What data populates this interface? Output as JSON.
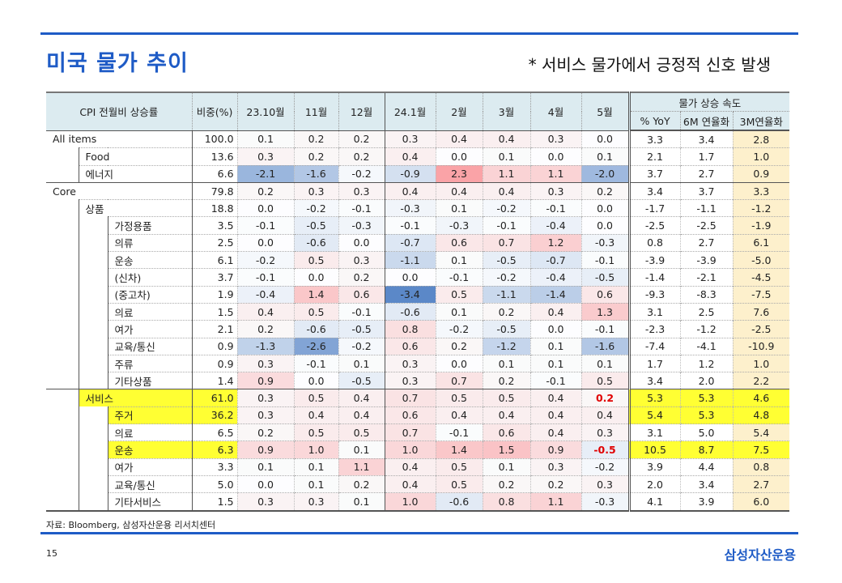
{
  "title": "미국 물가 추이",
  "subtitle": "* 서비스 물가에서 긍정적 신호 발생",
  "header": {
    "label": "CPI 전월비 상승률",
    "weight": "비중(%)",
    "months": [
      "23.10월",
      "11월",
      "12월",
      "24.1월",
      "2월",
      "3월",
      "4월",
      "5월"
    ],
    "speed": "물가 상승 속도",
    "speed_cols": [
      "% YoY",
      "6M 연율화",
      "3M연율화"
    ]
  },
  "rows": [
    {
      "name": "All items",
      "level": 0,
      "w": "100.0",
      "m": [
        "0.1",
        "0.2",
        "0.2",
        "0.3",
        "0.4",
        "0.4",
        "0.3",
        "0.0"
      ],
      "s": [
        "3.3",
        "3.4",
        "2.8"
      ]
    },
    {
      "name": "Food",
      "level": 1,
      "w": "13.6",
      "m": [
        "0.3",
        "0.2",
        "0.2",
        "0.4",
        "0.0",
        "0.1",
        "0.0",
        "0.1"
      ],
      "s": [
        "2.1",
        "1.7",
        "1.0"
      ]
    },
    {
      "name": "에너지",
      "level": 1,
      "w": "6.6",
      "m": [
        "-2.1",
        "-1.6",
        "-0.2",
        "-0.9",
        "2.3",
        "1.1",
        "1.1",
        "-2.0"
      ],
      "s": [
        "3.7",
        "2.7",
        "0.9"
      ]
    },
    {
      "name": "Core",
      "level": 0,
      "w": "79.8",
      "m": [
        "0.2",
        "0.3",
        "0.3",
        "0.4",
        "0.4",
        "0.4",
        "0.3",
        "0.2"
      ],
      "s": [
        "3.4",
        "3.7",
        "3.3"
      ]
    },
    {
      "name": "상품",
      "level": 1,
      "w": "18.8",
      "m": [
        "0.0",
        "-0.2",
        "-0.1",
        "-0.3",
        "0.1",
        "-0.2",
        "-0.1",
        "0.0"
      ],
      "s": [
        "-1.7",
        "-1.1",
        "-1.2"
      ]
    },
    {
      "name": "가정용품",
      "level": 2,
      "w": "3.5",
      "m": [
        "-0.1",
        "-0.5",
        "-0.3",
        "-0.1",
        "-0.3",
        "-0.1",
        "-0.4",
        "0.0"
      ],
      "s": [
        "-2.5",
        "-2.5",
        "-1.9"
      ]
    },
    {
      "name": "의류",
      "level": 2,
      "w": "2.5",
      "m": [
        "0.0",
        "-0.6",
        "0.0",
        "-0.7",
        "0.6",
        "0.7",
        "1.2",
        "-0.3"
      ],
      "s": [
        "0.8",
        "2.7",
        "6.1"
      ]
    },
    {
      "name": "운송",
      "level": 2,
      "w": "6.1",
      "m": [
        "-0.2",
        "0.5",
        "0.3",
        "-1.1",
        "0.1",
        "-0.5",
        "-0.7",
        "-0.1"
      ],
      "s": [
        "-3.9",
        "-3.9",
        "-5.0"
      ]
    },
    {
      "name": "(신차)",
      "level": 2,
      "w": "3.7",
      "m": [
        "-0.1",
        "0.0",
        "0.2",
        "0.0",
        "-0.1",
        "-0.2",
        "-0.4",
        "-0.5"
      ],
      "s": [
        "-1.4",
        "-2.1",
        "-4.5"
      ]
    },
    {
      "name": "(중고차)",
      "level": 2,
      "w": "1.9",
      "m": [
        "-0.4",
        "1.4",
        "0.6",
        "-3.4",
        "0.5",
        "-1.1",
        "-1.4",
        "0.6"
      ],
      "s": [
        "-9.3",
        "-8.3",
        "-7.5"
      ]
    },
    {
      "name": "의료",
      "level": 2,
      "w": "1.5",
      "m": [
        "0.4",
        "0.5",
        "-0.1",
        "-0.6",
        "0.1",
        "0.2",
        "0.4",
        "1.3"
      ],
      "s": [
        "3.1",
        "2.5",
        "7.6"
      ]
    },
    {
      "name": "여가",
      "level": 2,
      "w": "2.1",
      "m": [
        "0.2",
        "-0.6",
        "-0.5",
        "0.8",
        "-0.2",
        "-0.5",
        "0.0",
        "-0.1"
      ],
      "s": [
        "-2.3",
        "-1.2",
        "-2.5"
      ]
    },
    {
      "name": "교육/통신",
      "level": 2,
      "w": "0.9",
      "m": [
        "-1.3",
        "-2.6",
        "-0.2",
        "0.6",
        "0.2",
        "-1.2",
        "0.1",
        "-1.6"
      ],
      "s": [
        "-7.4",
        "-4.1",
        "-10.9"
      ]
    },
    {
      "name": "주류",
      "level": 2,
      "w": "0.9",
      "m": [
        "0.3",
        "-0.1",
        "0.1",
        "0.3",
        "0.0",
        "0.1",
        "0.1",
        "0.1"
      ],
      "s": [
        "1.7",
        "1.2",
        "1.0"
      ]
    },
    {
      "name": "기타상품",
      "level": 2,
      "w": "1.4",
      "m": [
        "0.9",
        "0.0",
        "-0.5",
        "0.3",
        "0.7",
        "0.2",
        "-0.1",
        "0.5"
      ],
      "s": [
        "3.4",
        "2.0",
        "2.2"
      ]
    },
    {
      "name": "서비스",
      "level": 1,
      "w": "61.0",
      "hl": true,
      "em": 7,
      "m": [
        "0.3",
        "0.5",
        "0.4",
        "0.7",
        "0.5",
        "0.5",
        "0.4",
        "0.2"
      ],
      "s": [
        "5.3",
        "5.3",
        "4.6"
      ]
    },
    {
      "name": "주거",
      "level": 2,
      "w": "36.2",
      "hl": true,
      "m": [
        "0.3",
        "0.4",
        "0.4",
        "0.6",
        "0.4",
        "0.4",
        "0.4",
        "0.4"
      ],
      "s": [
        "5.4",
        "5.3",
        "4.8"
      ]
    },
    {
      "name": "의료",
      "level": 2,
      "w": "6.5",
      "m": [
        "0.2",
        "0.5",
        "0.5",
        "0.7",
        "-0.1",
        "0.6",
        "0.4",
        "0.3"
      ],
      "s": [
        "3.1",
        "5.0",
        "5.4"
      ]
    },
    {
      "name": "운송",
      "level": 2,
      "w": "6.3",
      "hl": true,
      "em": 7,
      "m": [
        "0.9",
        "1.0",
        "0.1",
        "1.0",
        "1.4",
        "1.5",
        "0.9",
        "-0.5"
      ],
      "s": [
        "10.5",
        "8.7",
        "7.5"
      ]
    },
    {
      "name": "여가",
      "level": 2,
      "w": "3.3",
      "m": [
        "0.1",
        "0.1",
        "1.1",
        "0.4",
        "0.5",
        "0.1",
        "0.3",
        "-0.2"
      ],
      "s": [
        "3.9",
        "4.4",
        "0.8"
      ]
    },
    {
      "name": "교육/통신",
      "level": 2,
      "w": "5.0",
      "m": [
        "0.0",
        "0.1",
        "0.2",
        "0.4",
        "0.5",
        "0.2",
        "0.2",
        "0.3"
      ],
      "s": [
        "2.0",
        "3.4",
        "2.7"
      ]
    },
    {
      "name": "기타서비스",
      "level": 2,
      "w": "1.5",
      "m": [
        "0.3",
        "0.3",
        "0.1",
        "1.0",
        "-0.6",
        "0.8",
        "1.1",
        "-0.3"
      ],
      "s": [
        "4.1",
        "3.9",
        "6.0"
      ]
    }
  ],
  "colors": {
    "accent": "#1e5bc6",
    "highlight": "#ffff33",
    "cream": "#fdf0cc",
    "emphasis": "#e00000"
  },
  "source": "자료: Bloomberg, 삼성자산운용 리서치센터",
  "page_number": "15",
  "logo": "삼성자산운용"
}
